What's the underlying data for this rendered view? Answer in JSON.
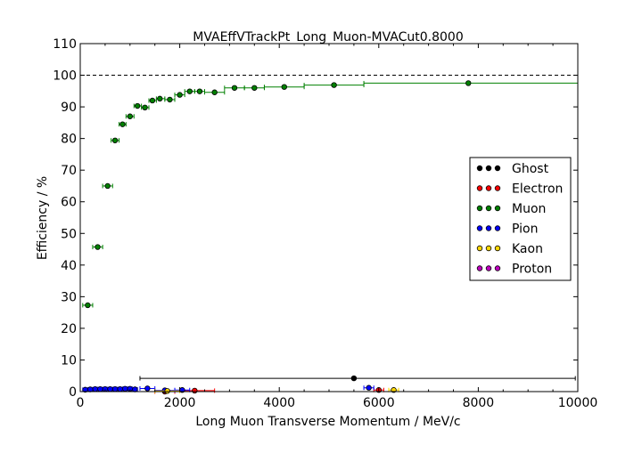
{
  "chart_data": {
    "type": "scatter",
    "title": "MVAEffVTrackPt_Long_Muon-MVACut0.8000",
    "xlabel": "Long Muon Transverse Momentum / MeV/c",
    "ylabel": "Efficiency / %",
    "xlim": [
      0,
      10000
    ],
    "ylim": [
      0,
      110
    ],
    "xticks": [
      "0",
      "2000",
      "4000",
      "6000",
      "8000",
      "10000"
    ],
    "yticks": [
      "0",
      "10",
      "20",
      "30",
      "40",
      "50",
      "60",
      "70",
      "80",
      "90",
      "100",
      "110"
    ],
    "reference_line": 100,
    "legend_position": "center-right",
    "grid": false,
    "series": [
      {
        "name": "Ghost",
        "color": "#000000",
        "points": [
          {
            "x": 5500,
            "xmin": 1200,
            "xmax": 9950,
            "y": 4.2
          }
        ]
      },
      {
        "name": "Electron",
        "color": "#ff0000",
        "points": [
          {
            "x": 1700,
            "xmin": 1500,
            "xmax": 1900,
            "y": 0
          },
          {
            "x": 2300,
            "xmin": 2000,
            "xmax": 2700,
            "y": 0.3
          },
          {
            "x": 6000,
            "xmin": 5900,
            "xmax": 6100,
            "y": 0.5
          }
        ]
      },
      {
        "name": "Muon",
        "color": "#008000",
        "points": [
          {
            "x": 150,
            "xmin": 50,
            "xmax": 250,
            "y": 27.3
          },
          {
            "x": 350,
            "xmin": 250,
            "xmax": 450,
            "y": 45.7
          },
          {
            "x": 550,
            "xmin": 450,
            "xmax": 650,
            "y": 65.0
          },
          {
            "x": 700,
            "xmin": 620,
            "xmax": 780,
            "y": 79.4
          },
          {
            "x": 850,
            "xmin": 780,
            "xmax": 920,
            "y": 84.5
          },
          {
            "x": 1000,
            "xmin": 920,
            "xmax": 1080,
            "y": 87.0
          },
          {
            "x": 1150,
            "xmin": 1080,
            "xmax": 1230,
            "y": 90.3
          },
          {
            "x": 1300,
            "xmin": 1230,
            "xmax": 1380,
            "y": 89.8
          },
          {
            "x": 1450,
            "xmin": 1380,
            "xmax": 1530,
            "y": 92.0
          },
          {
            "x": 1600,
            "xmin": 1530,
            "xmax": 1700,
            "y": 92.6
          },
          {
            "x": 1800,
            "xmin": 1700,
            "xmax": 1900,
            "y": 92.3
          },
          {
            "x": 2000,
            "xmin": 1900,
            "xmax": 2100,
            "y": 93.8
          },
          {
            "x": 2200,
            "xmin": 2100,
            "xmax": 2300,
            "y": 94.9
          },
          {
            "x": 2400,
            "xmin": 2300,
            "xmax": 2500,
            "y": 94.9
          },
          {
            "x": 2700,
            "xmin": 2500,
            "xmax": 2900,
            "y": 94.6
          },
          {
            "x": 3100,
            "xmin": 2900,
            "xmax": 3300,
            "y": 96.0
          },
          {
            "x": 3500,
            "xmin": 3300,
            "xmax": 3700,
            "y": 96.0
          },
          {
            "x": 4100,
            "xmin": 3700,
            "xmax": 4500,
            "y": 96.3
          },
          {
            "x": 5100,
            "xmin": 4500,
            "xmax": 5700,
            "y": 96.9
          },
          {
            "x": 7800,
            "xmin": 5700,
            "xmax": 10000,
            "y": 97.5
          }
        ]
      },
      {
        "name": "Pion",
        "color": "#0000ff",
        "points": [
          {
            "x": 100,
            "xmin": 50,
            "xmax": 150,
            "y": 0.6
          },
          {
            "x": 200,
            "xmin": 150,
            "xmax": 250,
            "y": 0.7
          },
          {
            "x": 300,
            "xmin": 250,
            "xmax": 350,
            "y": 0.8
          },
          {
            "x": 400,
            "xmin": 350,
            "xmax": 450,
            "y": 0.8
          },
          {
            "x": 500,
            "xmin": 450,
            "xmax": 550,
            "y": 0.8
          },
          {
            "x": 600,
            "xmin": 550,
            "xmax": 650,
            "y": 0.8
          },
          {
            "x": 700,
            "xmin": 650,
            "xmax": 750,
            "y": 0.8
          },
          {
            "x": 800,
            "xmin": 750,
            "xmax": 850,
            "y": 0.8
          },
          {
            "x": 900,
            "xmin": 850,
            "xmax": 950,
            "y": 0.9
          },
          {
            "x": 1000,
            "xmin": 950,
            "xmax": 1050,
            "y": 0.9
          },
          {
            "x": 1100,
            "xmin": 1050,
            "xmax": 1150,
            "y": 0.7
          },
          {
            "x": 1350,
            "xmin": 1200,
            "xmax": 1500,
            "y": 1.0
          },
          {
            "x": 1700,
            "xmin": 1500,
            "xmax": 1900,
            "y": 0.4
          },
          {
            "x": 2050,
            "xmin": 1900,
            "xmax": 2200,
            "y": 0.5
          },
          {
            "x": 5800,
            "xmin": 5700,
            "xmax": 5900,
            "y": 1.2
          }
        ]
      },
      {
        "name": "Kaon",
        "color": "#ffd700",
        "points": [
          {
            "x": 1750,
            "xmin": 1500,
            "xmax": 2000,
            "y": 0.2
          },
          {
            "x": 6300,
            "xmin": 6200,
            "xmax": 6400,
            "y": 0.5
          }
        ]
      },
      {
        "name": "Proton",
        "color": "#bf00bf",
        "points": []
      }
    ]
  }
}
